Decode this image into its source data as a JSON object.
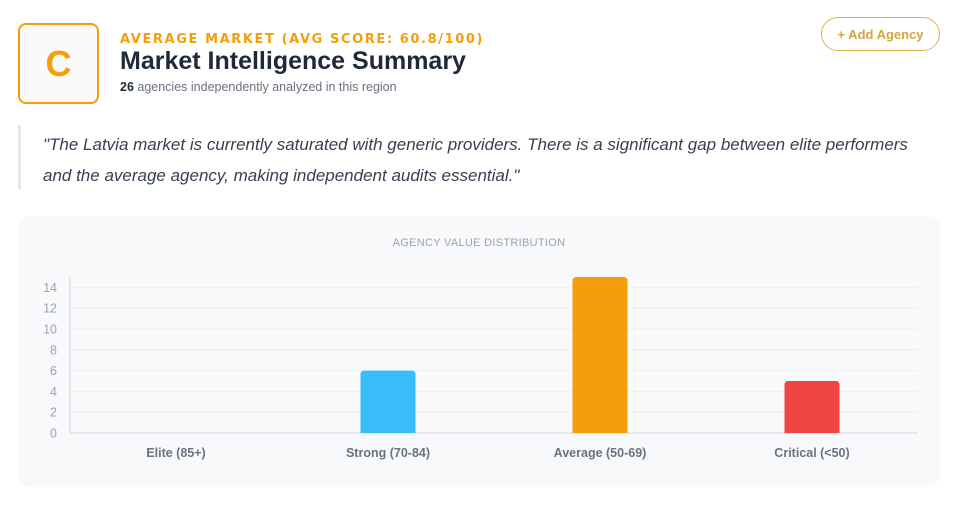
{
  "header": {
    "grade": "C",
    "kicker": "AVERAGE MARKET (AVG SCORE: 60.8/100)",
    "title": "Market Intelligence Summary",
    "agency_count": "26",
    "agency_count_suffix": " agencies independently analyzed in this region",
    "add_button_label": "+ Add Agency"
  },
  "quote": "\"The Latvia market is currently saturated with generic providers. There is a significant gap between elite performers and the average agency, making independent audits essential.\"",
  "colors": {
    "accent": "#f59e0b",
    "elite": "#22c55e",
    "strong": "#38bdf8",
    "average": "#f59e0b",
    "critical": "#ef4444"
  },
  "chart_data": {
    "type": "bar",
    "title": "AGENCY VALUE DISTRIBUTION",
    "categories": [
      "Elite (85+)",
      "Strong (70-84)",
      "Average (50-69)",
      "Critical (<50)"
    ],
    "values": [
      0,
      6,
      15,
      5
    ],
    "bar_colors": [
      "#22c55e",
      "#38bdf8",
      "#f59e0b",
      "#ef4444"
    ],
    "yticks": [
      0,
      2,
      4,
      6,
      8,
      10,
      12,
      14
    ],
    "ylim": [
      0,
      15
    ],
    "xlabel": "",
    "ylabel": "",
    "grid": true,
    "legend": "none"
  }
}
